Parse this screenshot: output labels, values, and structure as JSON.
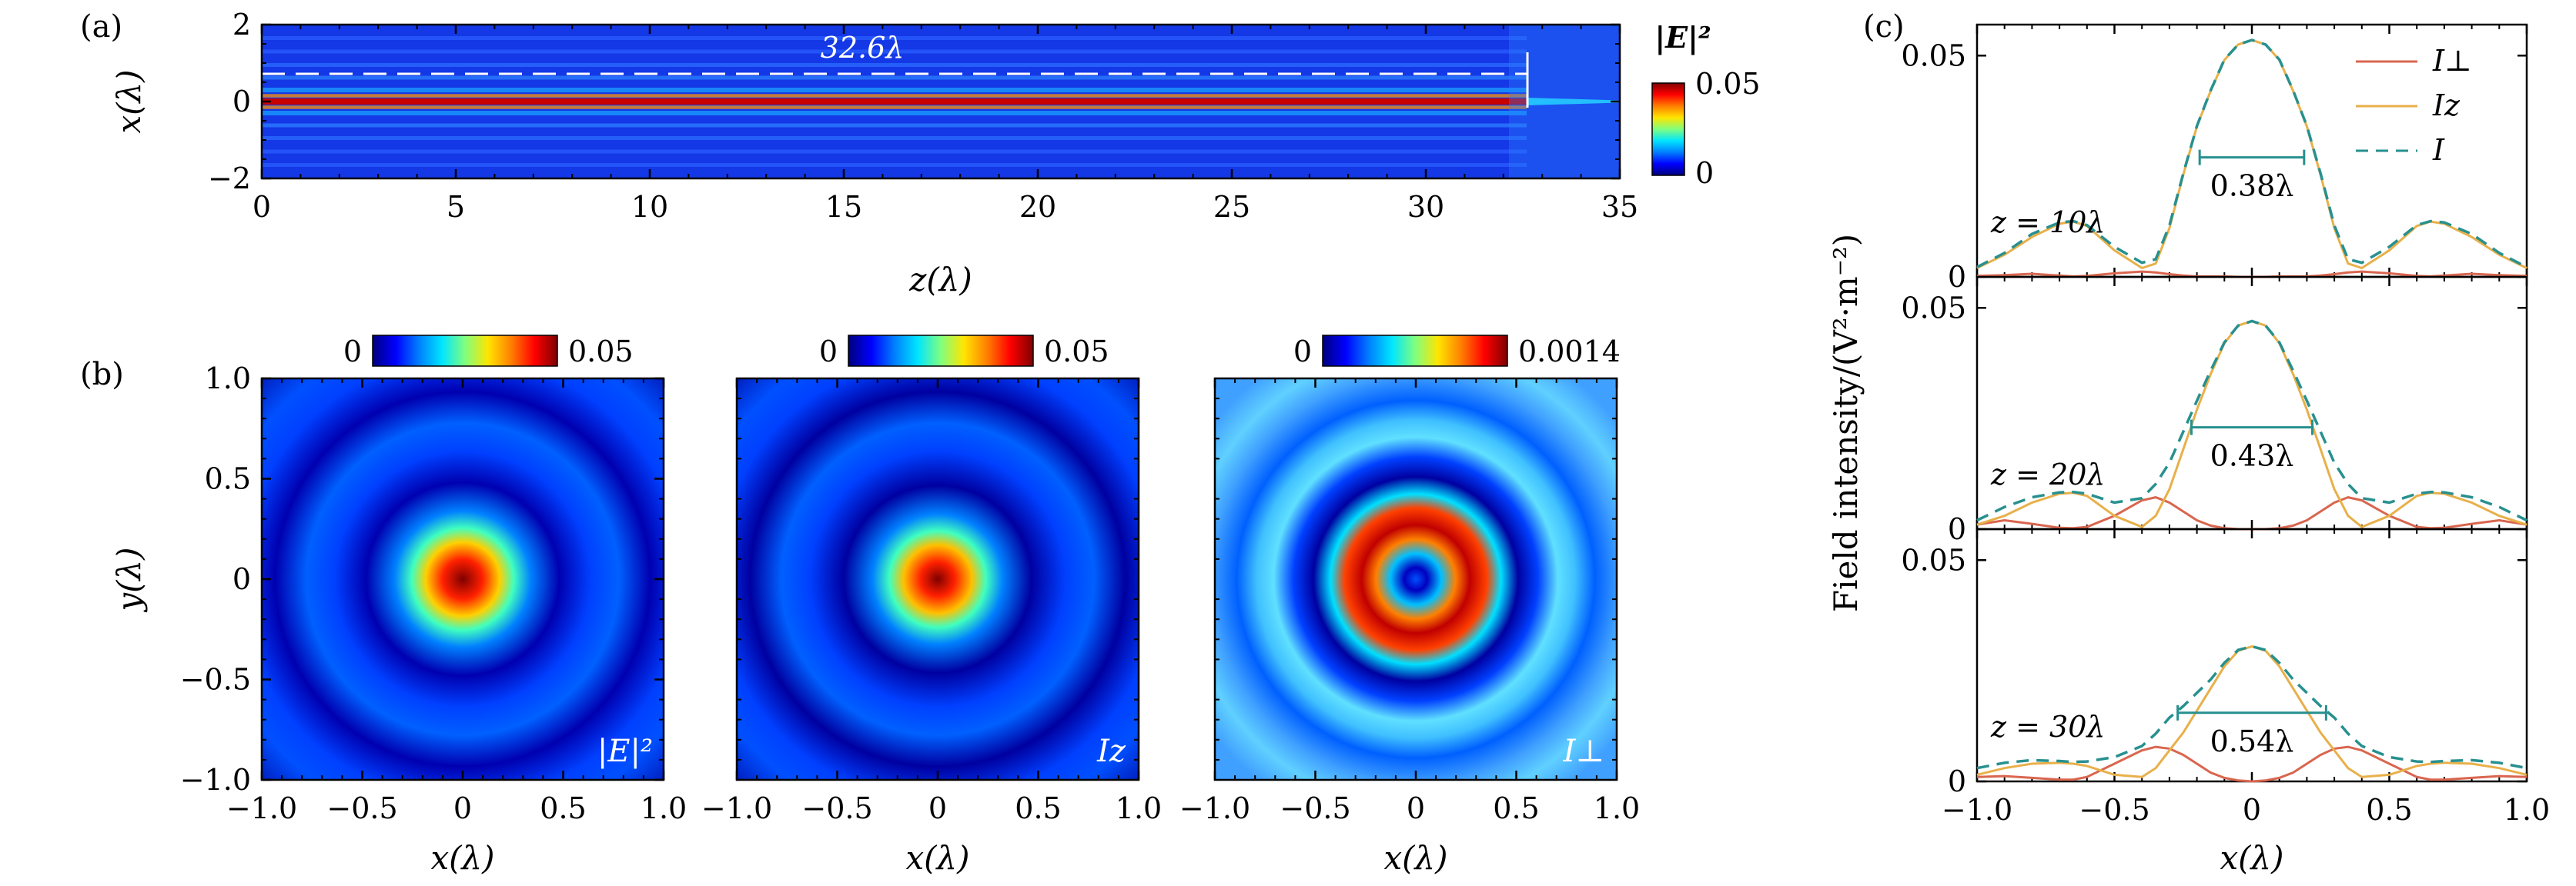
{
  "figure": {
    "colormap": [
      "#00007f",
      "#0000ff",
      "#007fff",
      "#00e5ff",
      "#7fff7f",
      "#ffe500",
      "#ff7f00",
      "#ff0000",
      "#7f0000"
    ]
  },
  "panel_a": {
    "label": "(a)",
    "annotation": "32.6λ",
    "colorbar_label": "|E|²",
    "colorbar_ticks": [
      "0.05",
      "0"
    ]
  },
  "panel_b": {
    "label": "(b)"
  },
  "panel_c": {
    "label": "(c)",
    "ylabel": "Field intensity/(V²·m⁻²)",
    "legend": [
      "I⊥",
      "Iz",
      "I"
    ]
  },
  "chart_data": [
    {
      "id": "a",
      "type": "heatmap",
      "title": "",
      "xlabel": "z(λ)",
      "ylabel": "x(λ)",
      "xlim": [
        0,
        35
      ],
      "ylim": [
        -2,
        2
      ],
      "xticks": [
        "0",
        "5",
        "10",
        "15",
        "20",
        "25",
        "30",
        "35"
      ],
      "yticks": [
        "2",
        "0",
        "−2"
      ],
      "focal_length_z": 32.6,
      "annotation": "32.6λ",
      "colorbar": {
        "label": "|E|²",
        "range": [
          0,
          0.05
        ]
      }
    },
    {
      "id": "b1",
      "type": "heatmap",
      "xlabel": "x(λ)",
      "ylabel": "y(λ)",
      "xlim": [
        -1,
        1
      ],
      "ylim": [
        -1,
        1
      ],
      "xticks": [
        "−1.0",
        "−0.5",
        "0",
        "0.5",
        "1.0"
      ],
      "yticks": [
        "1.0",
        "0.5",
        "0",
        "−0.5",
        "−1.0"
      ],
      "inset_label": "|E|²",
      "colorbar": {
        "min_label": "0",
        "max_label": "0.05",
        "range": [
          0,
          0.05
        ]
      }
    },
    {
      "id": "b2",
      "type": "heatmap",
      "xlabel": "x(λ)",
      "xlim": [
        -1,
        1
      ],
      "ylim": [
        -1,
        1
      ],
      "xticks": [
        "−1.0",
        "−0.5",
        "0",
        "0.5",
        "1.0"
      ],
      "inset_label": "Iz",
      "colorbar": {
        "min_label": "0",
        "max_label": "0.05",
        "range": [
          0,
          0.05
        ]
      }
    },
    {
      "id": "b3",
      "type": "heatmap",
      "xlabel": "x(λ)",
      "xlim": [
        -1,
        1
      ],
      "ylim": [
        -1,
        1
      ],
      "xticks": [
        "−1.0",
        "−0.5",
        "0",
        "0.5",
        "1.0"
      ],
      "inset_label": "I⊥",
      "colorbar": {
        "min_label": "0",
        "max_label": "0.0014",
        "range": [
          0,
          0.0014
        ]
      }
    },
    {
      "id": "c",
      "type": "line",
      "xlabel": "x(λ)",
      "ylabel": "Field intensity/(V²·m⁻²)",
      "xlim": [
        -1,
        1
      ],
      "ylim": [
        0,
        0.057
      ],
      "xticks": [
        "−1.0",
        "−0.5",
        "0",
        "0.5",
        "1.0"
      ],
      "yticks": [
        "0.05",
        "0"
      ],
      "legend": [
        "I⊥",
        "Iz",
        "I"
      ],
      "colors": {
        "I_perp": "#d9664f",
        "I_z": "#e8b04a",
        "I": "#27908f"
      },
      "subplots": [
        {
          "label": "z = 10λ",
          "fwhm_label": "0.38λ",
          "fwhm": [
            -0.19,
            0.19,
            0.027
          ],
          "x": [
            -1.0,
            -0.9,
            -0.8,
            -0.7,
            -0.65,
            -0.6,
            -0.5,
            -0.4,
            -0.35,
            -0.3,
            -0.25,
            -0.2,
            -0.15,
            -0.1,
            -0.05,
            0.0,
            0.05,
            0.1,
            0.15,
            0.2,
            0.25,
            0.3,
            0.35,
            0.4,
            0.5,
            0.6,
            0.65,
            0.7,
            0.8,
            0.9,
            1.0
          ],
          "I_perp": [
            0.0002,
            0.0004,
            0.0007,
            0.0003,
            0.0001,
            0.0002,
            0.0008,
            0.0012,
            0.001,
            0.0006,
            0.0003,
            0.0001,
            0.0001,
            0.0001,
            0.0,
            0.0,
            0.0,
            0.0001,
            0.0001,
            0.0001,
            0.0003,
            0.0006,
            0.001,
            0.0012,
            0.0008,
            0.0002,
            0.0001,
            0.0003,
            0.0007,
            0.0004,
            0.0002
          ],
          "I_z": [
            0.002,
            0.005,
            0.009,
            0.012,
            0.0125,
            0.0115,
            0.006,
            0.002,
            0.003,
            0.011,
            0.023,
            0.034,
            0.042,
            0.049,
            0.0525,
            0.0535,
            0.0525,
            0.049,
            0.042,
            0.034,
            0.023,
            0.011,
            0.003,
            0.002,
            0.006,
            0.0115,
            0.0125,
            0.012,
            0.009,
            0.005,
            0.002
          ],
          "I": [
            0.0022,
            0.0054,
            0.0097,
            0.0123,
            0.0126,
            0.0117,
            0.0068,
            0.0032,
            0.004,
            0.0116,
            0.0233,
            0.0341,
            0.0421,
            0.0491,
            0.0525,
            0.0535,
            0.0525,
            0.0491,
            0.0421,
            0.0341,
            0.0233,
            0.0116,
            0.004,
            0.0032,
            0.0068,
            0.0117,
            0.0126,
            0.0123,
            0.0097,
            0.0054,
            0.0022
          ]
        },
        {
          "label": "z = 20λ",
          "fwhm_label": "0.43λ",
          "fwhm": [
            -0.22,
            0.22,
            0.023
          ],
          "x": [
            -1.0,
            -0.9,
            -0.8,
            -0.7,
            -0.65,
            -0.6,
            -0.5,
            -0.4,
            -0.35,
            -0.3,
            -0.25,
            -0.2,
            -0.15,
            -0.1,
            -0.05,
            0.0,
            0.05,
            0.1,
            0.15,
            0.2,
            0.25,
            0.3,
            0.35,
            0.4,
            0.5,
            0.6,
            0.65,
            0.7,
            0.8,
            0.9,
            1.0
          ],
          "I_perp": [
            0.001,
            0.002,
            0.0012,
            0.0003,
            0.0002,
            0.0005,
            0.003,
            0.0065,
            0.0072,
            0.006,
            0.004,
            0.002,
            0.0008,
            0.0002,
            0.0,
            0.0,
            0.0,
            0.0002,
            0.0008,
            0.002,
            0.004,
            0.006,
            0.0072,
            0.0065,
            0.003,
            0.0005,
            0.0002,
            0.0003,
            0.0012,
            0.002,
            0.001
          ],
          "I_z": [
            0.001,
            0.003,
            0.006,
            0.008,
            0.0082,
            0.0075,
            0.003,
            0.0005,
            0.003,
            0.009,
            0.018,
            0.027,
            0.035,
            0.042,
            0.046,
            0.047,
            0.046,
            0.042,
            0.035,
            0.027,
            0.018,
            0.009,
            0.003,
            0.0005,
            0.003,
            0.0075,
            0.0082,
            0.008,
            0.006,
            0.003,
            0.001
          ],
          "I": [
            0.002,
            0.005,
            0.0072,
            0.0083,
            0.0084,
            0.008,
            0.006,
            0.007,
            0.0102,
            0.015,
            0.022,
            0.029,
            0.0358,
            0.0422,
            0.046,
            0.047,
            0.046,
            0.0422,
            0.0358,
            0.029,
            0.022,
            0.015,
            0.0102,
            0.007,
            0.006,
            0.008,
            0.0084,
            0.0083,
            0.0072,
            0.005,
            0.002
          ]
        },
        {
          "label": "z = 30λ",
          "fwhm_label": "0.54λ",
          "fwhm": [
            -0.27,
            0.27,
            0.0155
          ],
          "x": [
            -1.0,
            -0.9,
            -0.8,
            -0.7,
            -0.65,
            -0.6,
            -0.5,
            -0.4,
            -0.35,
            -0.3,
            -0.25,
            -0.2,
            -0.15,
            -0.1,
            -0.05,
            0.0,
            0.05,
            0.1,
            0.15,
            0.2,
            0.25,
            0.3,
            0.35,
            0.4,
            0.5,
            0.6,
            0.65,
            0.7,
            0.8,
            0.9,
            1.0
          ],
          "I_perp": [
            0.001,
            0.0012,
            0.0008,
            0.0004,
            0.0004,
            0.001,
            0.004,
            0.007,
            0.0078,
            0.0074,
            0.006,
            0.004,
            0.002,
            0.0008,
            0.0002,
            0.0,
            0.0002,
            0.0008,
            0.002,
            0.004,
            0.006,
            0.0074,
            0.0078,
            0.007,
            0.004,
            0.001,
            0.0004,
            0.0004,
            0.0008,
            0.0012,
            0.001
          ],
          "I_z": [
            0.0015,
            0.003,
            0.004,
            0.0042,
            0.004,
            0.0035,
            0.0015,
            0.001,
            0.003,
            0.007,
            0.011,
            0.016,
            0.021,
            0.026,
            0.0295,
            0.0305,
            0.0295,
            0.026,
            0.021,
            0.016,
            0.011,
            0.007,
            0.003,
            0.001,
            0.0015,
            0.0035,
            0.004,
            0.0042,
            0.004,
            0.003,
            0.0015
          ],
          "I": [
            0.003,
            0.0042,
            0.0048,
            0.0046,
            0.0044,
            0.0045,
            0.0055,
            0.008,
            0.0108,
            0.0144,
            0.017,
            0.02,
            0.023,
            0.0268,
            0.0297,
            0.0305,
            0.0297,
            0.0268,
            0.023,
            0.02,
            0.017,
            0.0144,
            0.0108,
            0.008,
            0.0055,
            0.0045,
            0.0044,
            0.0046,
            0.0048,
            0.0042,
            0.003
          ]
        }
      ]
    }
  ]
}
